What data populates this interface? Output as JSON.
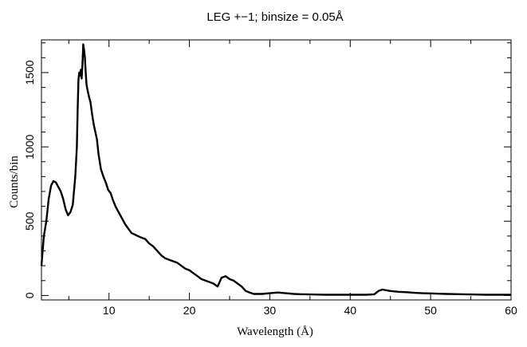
{
  "chart_data": {
    "type": "line",
    "title": "LEG +−1; binsize = 0.05Å",
    "xlabel": "Wavelength (Å)",
    "ylabel": "Counts/bin",
    "xlim": [
      1.6,
      60
    ],
    "ylim": [
      -30,
      1720
    ],
    "grid": false,
    "legend": "none",
    "x_ticks": [
      10,
      20,
      30,
      40,
      50,
      60
    ],
    "y_ticks": [
      0,
      500,
      1000,
      1500
    ],
    "x_tick_labels": [
      "10",
      "20",
      "30",
      "40",
      "50",
      "60"
    ],
    "y_tick_labels": [
      "0",
      "500",
      "1000",
      "1500"
    ],
    "series": [
      {
        "x": [
          1.6,
          1.9,
          2.2,
          2.5,
          2.8,
          3.1,
          3.4,
          3.7,
          4.0,
          4.3,
          4.6,
          4.9,
          5.2,
          5.5,
          5.8,
          6.0,
          6.1,
          6.2,
          6.3,
          6.4,
          6.5,
          6.6,
          6.7,
          6.8,
          6.9,
          7.0,
          7.1,
          7.2,
          7.3,
          7.5,
          7.7,
          7.9,
          8.1,
          8.3,
          8.5,
          8.7,
          9.0,
          9.3,
          9.6,
          9.9,
          10.2,
          10.5,
          10.8,
          11.2,
          11.6,
          12.0,
          12.4,
          12.8,
          13.2,
          13.6,
          14.0,
          14.5,
          15.0,
          15.5,
          16.0,
          16.5,
          17.0,
          17.5,
          18.0,
          18.5,
          19.0,
          19.5,
          20.0,
          20.5,
          21.0,
          21.5,
          22.0,
          22.5,
          23.0,
          23.5,
          24.0,
          24.5,
          25.0,
          25.5,
          26.0,
          26.5,
          27.0,
          27.5,
          28.0,
          29.0,
          30.0,
          31.0,
          32.0,
          33.0,
          34.0,
          35.0,
          36.0,
          37.0,
          38.0,
          39.0,
          40.0,
          41.0,
          42.0,
          43.0,
          43.5,
          44.0,
          44.5,
          45.0,
          46.0,
          47.0,
          48.0,
          49.0,
          50.0,
          51.0,
          52.0,
          53.0,
          54.0,
          55.0,
          56.0,
          57.0,
          58.0,
          59.0,
          60.0
        ],
        "y": [
          200,
          400,
          500,
          650,
          740,
          770,
          760,
          730,
          700,
          650,
          580,
          540,
          560,
          610,
          800,
          1000,
          1250,
          1450,
          1500,
          1480,
          1520,
          1460,
          1550,
          1690,
          1650,
          1600,
          1500,
          1420,
          1390,
          1340,
          1300,
          1220,
          1150,
          1100,
          1050,
          950,
          850,
          800,
          760,
          710,
          690,
          640,
          600,
          560,
          520,
          480,
          450,
          420,
          410,
          400,
          390,
          380,
          350,
          330,
          300,
          270,
          250,
          240,
          230,
          220,
          200,
          180,
          170,
          150,
          130,
          110,
          100,
          90,
          80,
          60,
          120,
          130,
          110,
          100,
          80,
          60,
          30,
          20,
          10,
          10,
          15,
          20,
          15,
          10,
          8,
          7,
          6,
          5,
          5,
          5,
          5,
          5,
          5,
          8,
          30,
          40,
          35,
          30,
          25,
          22,
          18,
          15,
          14,
          12,
          10,
          9,
          8,
          7,
          6,
          5,
          5,
          5,
          5
        ]
      }
    ]
  }
}
